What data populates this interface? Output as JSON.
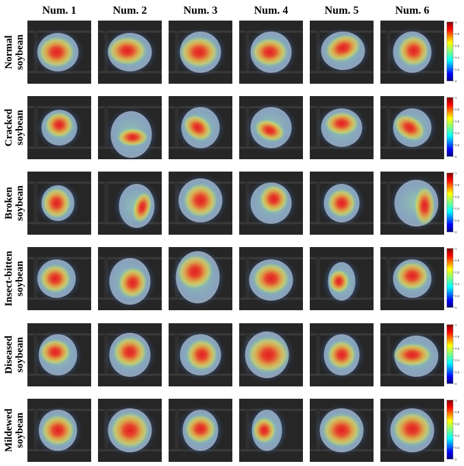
{
  "columns": [
    "Num. 1",
    "Num. 2",
    "Num. 3",
    "Num. 4",
    "Num. 5",
    "Num. 6"
  ],
  "rows": [
    {
      "line1": "Normal",
      "line2": "soybean"
    },
    {
      "line1": "Cracked",
      "line2": "soybean"
    },
    {
      "line1": "Broken",
      "line2": "soybean"
    },
    {
      "line1": "Insect-bitten",
      "line2": "soybean"
    },
    {
      "line1": "Diseased",
      "line2": "soybean"
    },
    {
      "line1": "Mildewed",
      "line2": "soybean"
    }
  ],
  "colorbar": {
    "ticks": [
      "1",
      "0.8",
      "0.6",
      "0.4",
      "0.2",
      "0"
    ],
    "colormap": "jet"
  },
  "colors": {
    "background": "#ffffff",
    "conveyor": "#262626",
    "stripe": "#3a3a3a",
    "seed": "#a8aeb4",
    "heat_low": "#4a7fc0",
    "heat_mid": "#e8d84a",
    "heat_high": "#e8151b"
  }
}
